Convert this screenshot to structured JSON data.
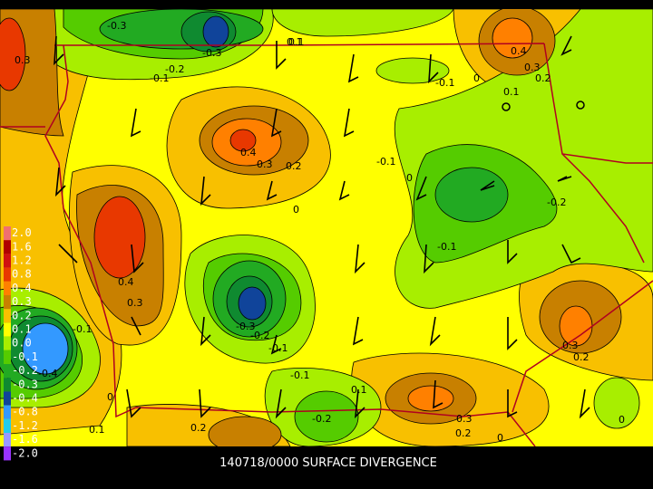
{
  "title": "140718/0000 SURFACE DIVERGENCE",
  "legend": {
    "levels": [
      "2.0",
      "1.6",
      "1.2",
      "0.8",
      "0.4",
      "0.3",
      "0.2",
      "0.1",
      "0.0",
      "-0.1",
      "-0.2",
      "-0.3",
      "-0.4",
      "-0.8",
      "-1.2",
      "-1.6",
      "-2.0"
    ],
    "colors": [
      "#f07070",
      "#b00000",
      "#d01010",
      "#e83800",
      "#ff8000",
      "#c88000",
      "#f8c000",
      "#ffff00",
      "#a8ee00",
      "#55cc00",
      "#22aa22",
      "#0f8a30",
      "#10449a",
      "#3399ff",
      "#22ccee",
      "#9999ff",
      "#9933ff"
    ]
  },
  "contour_labels": [
    "-0.3",
    "-0.3",
    "0.1",
    "-0.2",
    "-0.1",
    "0.3",
    "0.4",
    "0.3",
    "0.2",
    "0.1",
    "-0.1",
    "0",
    "0.1",
    "0.4",
    "0.3",
    "0.2",
    "-0.1",
    "0",
    "0",
    "-0.2",
    "-0.1",
    "0.4",
    "0.3",
    "-0.3",
    "-0.2",
    "-0.1",
    "-0.1",
    "0.1",
    "0",
    "0.1",
    "0.2",
    "-0.2",
    "0.3",
    "0.2",
    "0",
    "0.3",
    "0.2",
    "0",
    "-0.1",
    "-0.4"
  ]
}
